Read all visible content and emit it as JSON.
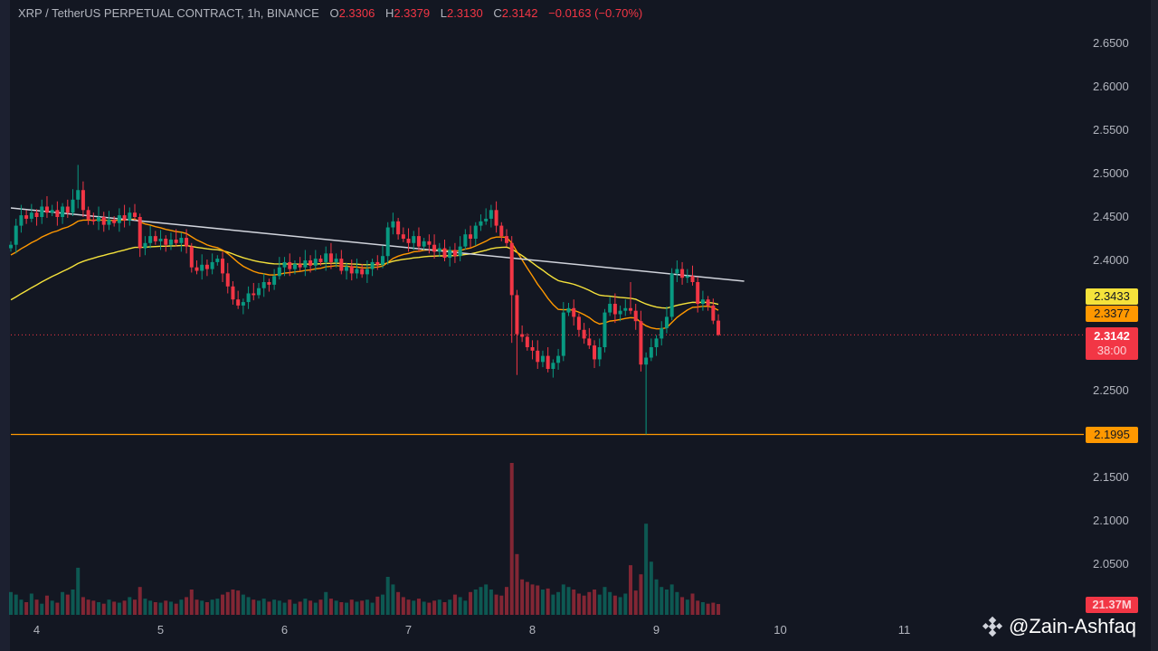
{
  "header": {
    "symbol": "XRP / TetherUS PERPETUAL CONTRACT, 1h, BINANCE",
    "open_label": "O",
    "open": "2.3306",
    "high_label": "H",
    "high": "2.3379",
    "low_label": "L",
    "low": "2.3130",
    "close_label": "C",
    "close": "2.3142",
    "change": "−0.0163 (−0.70%)"
  },
  "price_labels": {
    "ema_slow": "2.3433",
    "ema_fast": "2.3377",
    "last_price": "2.3142",
    "countdown": "38:00",
    "support": "2.1995",
    "volume": "21.37M"
  },
  "watermark": "@Zain-Ashfaq",
  "colors": {
    "up": "#089981",
    "down": "#f23645",
    "ema_slow": "#f5e23b",
    "ema_fast": "#ff9800",
    "trendline": "#d1d4dc",
    "support": "#ff9800",
    "background": "#131722"
  },
  "chart_data": {
    "type": "candlestick",
    "title": "XRP / TetherUS PERPETUAL CONTRACT, 1h, BINANCE",
    "interval": "1h",
    "y_ticks": [
      "2.6500",
      "2.6000",
      "2.5500",
      "2.5000",
      "2.4500",
      "2.4000",
      "2.2500",
      "2.1500",
      "2.1000",
      "2.0500"
    ],
    "ylim": [
      2.0,
      2.7
    ],
    "x_ticks": [
      "4",
      "5",
      "6",
      "7",
      "8",
      "9",
      "10",
      "11"
    ],
    "grid": false,
    "close": [
      2.418,
      2.44,
      2.452,
      2.448,
      2.455,
      2.45,
      2.462,
      2.455,
      2.458,
      2.45,
      2.462,
      2.455,
      2.47,
      2.481,
      2.458,
      2.447,
      2.445,
      2.45,
      2.441,
      2.447,
      2.443,
      2.452,
      2.446,
      2.455,
      2.45,
      2.414,
      2.42,
      2.428,
      2.422,
      2.425,
      2.418,
      2.424,
      2.42,
      2.426,
      2.416,
      2.392,
      2.388,
      2.395,
      2.39,
      2.398,
      2.402,
      2.385,
      2.37,
      2.355,
      2.348,
      2.352,
      2.362,
      2.36,
      2.368,
      2.375,
      2.372,
      2.382,
      2.392,
      2.398,
      2.39,
      2.396,
      2.392,
      2.4,
      2.394,
      2.402,
      2.398,
      2.408,
      2.398,
      2.402,
      2.388,
      2.393,
      2.385,
      2.39,
      2.384,
      2.39,
      2.398,
      2.395,
      2.405,
      2.438,
      2.445,
      2.43,
      2.425,
      2.42,
      2.428,
      2.416,
      2.422,
      2.418,
      2.41,
      2.414,
      2.403,
      2.412,
      2.405,
      2.416,
      2.43,
      2.425,
      2.44,
      2.445,
      2.448,
      2.458,
      2.44,
      2.428,
      2.42,
      2.36,
      2.315,
      2.312,
      2.3,
      2.296,
      2.283,
      2.29,
      2.275,
      2.282,
      2.29,
      2.34,
      2.345,
      2.335,
      2.32,
      2.31,
      2.302,
      2.286,
      2.3,
      2.34,
      2.35,
      2.338,
      2.342,
      2.345,
      2.342,
      2.33,
      2.28,
      2.288,
      2.3,
      2.31,
      2.322,
      2.335,
      2.385,
      2.39,
      2.38,
      2.382,
      2.375,
      2.35,
      2.355,
      2.348,
      2.3306,
      2.3142
    ],
    "high_overrides": {
      "13": 2.51,
      "97": 2.428,
      "120": 2.375,
      "130": 2.398,
      "137": 2.3379
    },
    "low_overrides": {
      "123": 2.1995,
      "97": 2.305,
      "98": 2.268,
      "137": 2.313
    },
    "volume_m": [
      45,
      40,
      30,
      25,
      42,
      30,
      22,
      38,
      28,
      24,
      45,
      40,
      50,
      93,
      35,
      30,
      28,
      25,
      22,
      30,
      26,
      24,
      28,
      35,
      30,
      55,
      32,
      28,
      25,
      24,
      28,
      26,
      22,
      30,
      35,
      50,
      30,
      28,
      25,
      30,
      32,
      40,
      45,
      50,
      48,
      40,
      35,
      30,
      28,
      32,
      26,
      30,
      28,
      24,
      30,
      22,
      26,
      32,
      28,
      24,
      30,
      45,
      32,
      28,
      25,
      24,
      30,
      26,
      28,
      30,
      24,
      36,
      40,
      75,
      60,
      45,
      35,
      30,
      28,
      32,
      26,
      24,
      28,
      30,
      25,
      30,
      40,
      35,
      28,
      45,
      50,
      55,
      60,
      50,
      40,
      38,
      55,
      300,
      120,
      70,
      65,
      60,
      58,
      50,
      52,
      40,
      45,
      60,
      55,
      50,
      42,
      38,
      45,
      50,
      40,
      55,
      45,
      38,
      35,
      42,
      98,
      48,
      80,
      180,
      105,
      70,
      55,
      50,
      60,
      45,
      35,
      30,
      42,
      28,
      25,
      22,
      24,
      21.37
    ],
    "indicators": [
      {
        "type": "EMA",
        "last": 2.3433,
        "color": "yellow"
      },
      {
        "type": "EMA",
        "last": 2.3377,
        "color": "orange"
      }
    ],
    "trendline": {
      "start": {
        "bar": 0,
        "price": 2.4604
      },
      "end": {
        "bar": 142,
        "price": 2.376
      }
    },
    "horizontal_line": 2.1995
  }
}
